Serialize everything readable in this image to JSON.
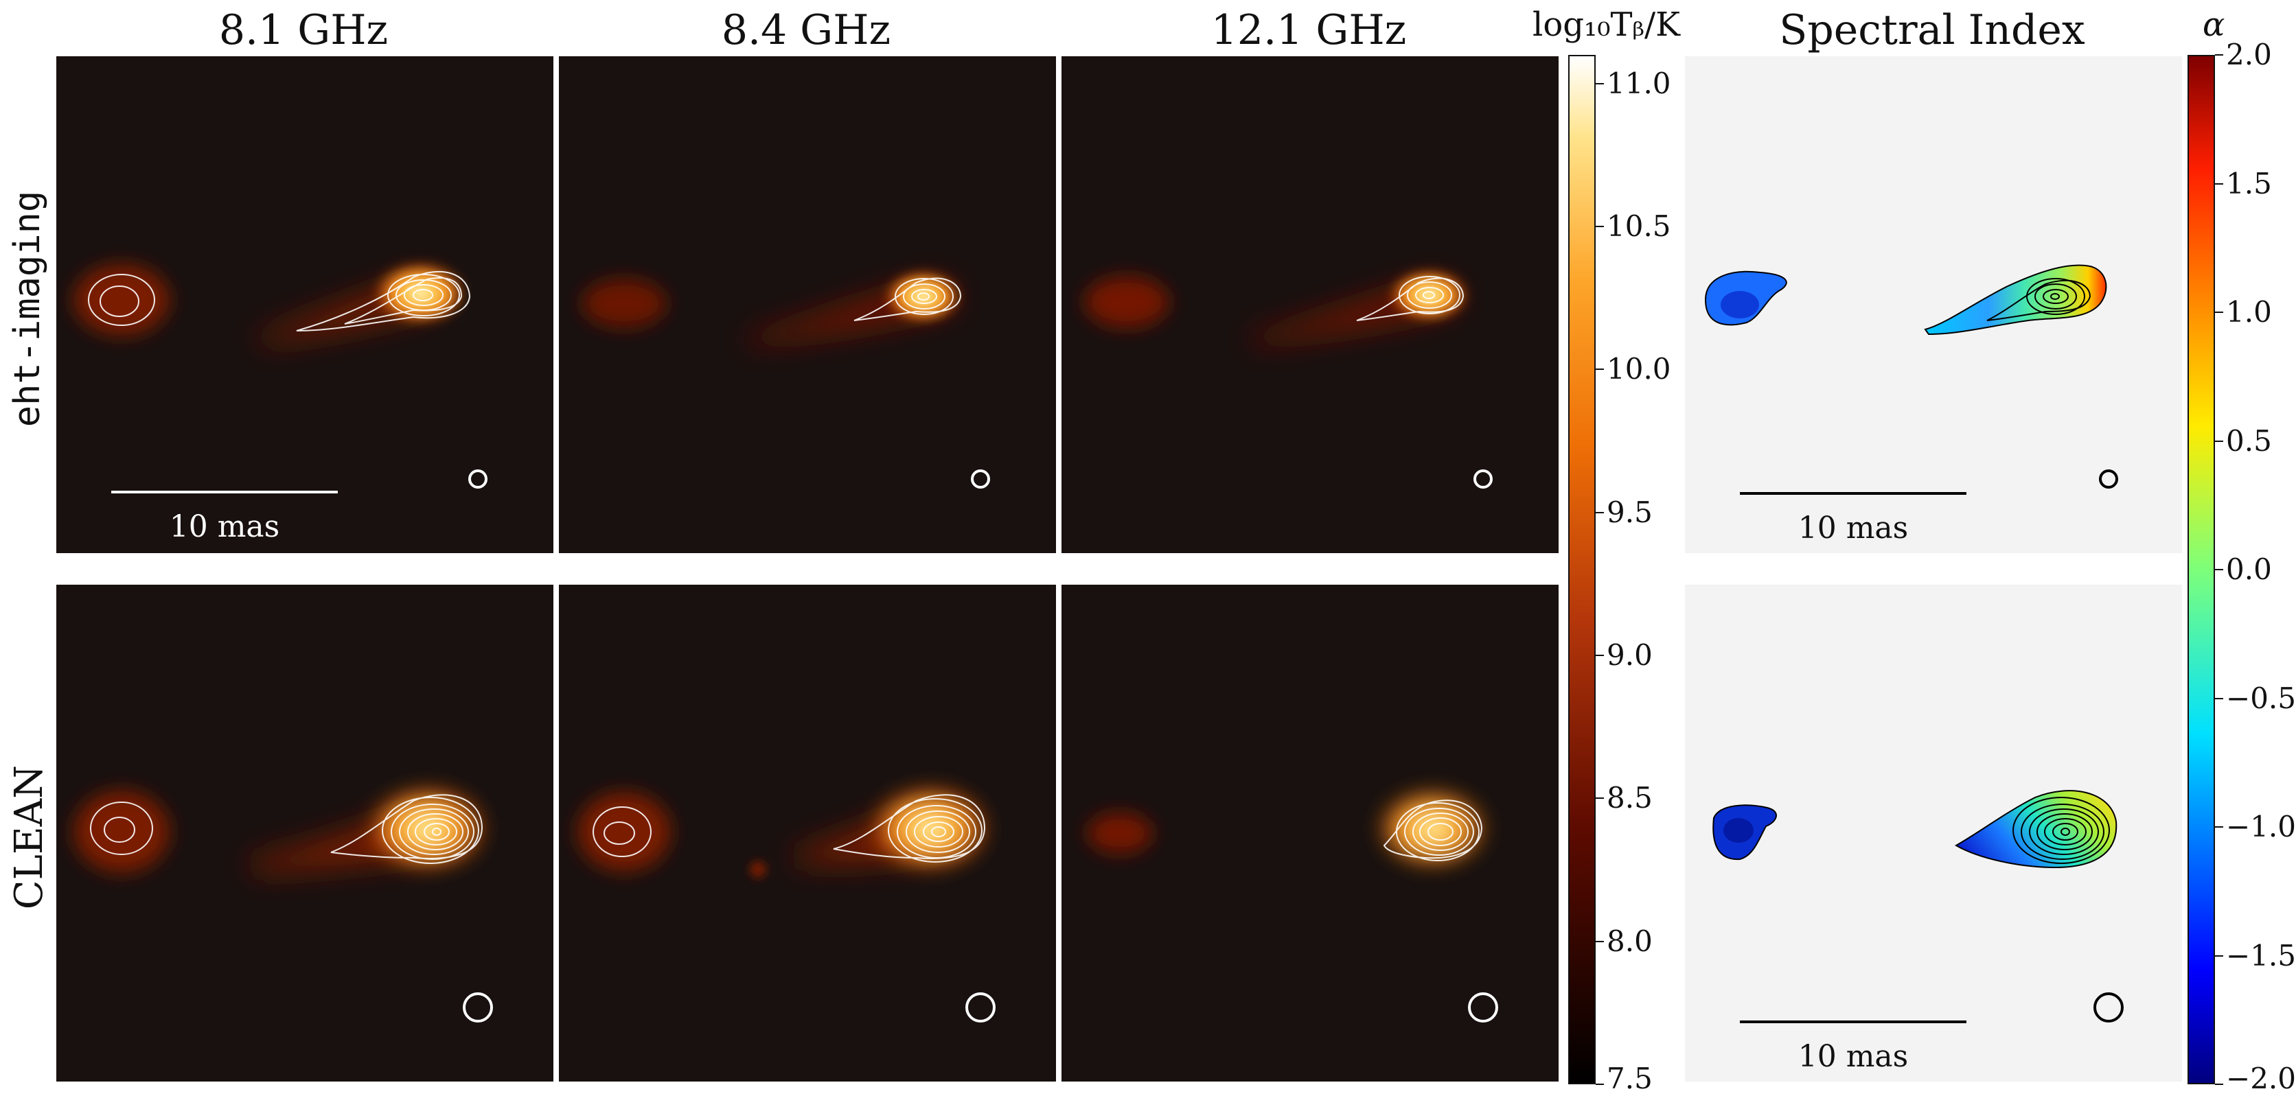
{
  "figure": {
    "column_titles": [
      "8.1 GHz",
      "8.4 GHz",
      "12.1 GHz",
      "Spectral Index"
    ],
    "row_labels": [
      "eht-imaging",
      "CLEAN"
    ],
    "scale_bar_label": "10 mas"
  },
  "colorbars": {
    "brightness": {
      "title": "log₁₀Tᵦ/K",
      "ticks": [
        "11.0",
        "10.5",
        "10.0",
        "9.5",
        "9.0",
        "8.5",
        "8.0",
        "7.5"
      ],
      "range": [
        7.5,
        11.1
      ],
      "colormap": "afmhot"
    },
    "spectral": {
      "title": "α",
      "ticks": [
        "2.0",
        "1.5",
        "1.0",
        "0.5",
        "0.0",
        "−0.5",
        "−1.0",
        "−1.5",
        "−2.0"
      ],
      "range": [
        -2.0,
        2.0
      ],
      "colormap": "jet"
    }
  },
  "colors": {
    "image_background": "#18110f",
    "spectral_background": "#f3f3f3",
    "contour_light": "#ffffff",
    "contour_dark": "#000000"
  },
  "chart_data": {
    "type": "heatmap",
    "panels": [
      {
        "row": "eht-imaging",
        "column": "8.1 GHz",
        "beam": "small",
        "scale_bar": true
      },
      {
        "row": "eht-imaging",
        "column": "8.4 GHz",
        "beam": "small",
        "scale_bar": false
      },
      {
        "row": "eht-imaging",
        "column": "12.1 GHz",
        "beam": "small",
        "scale_bar": false
      },
      {
        "row": "eht-imaging",
        "column": "Spectral Index",
        "beam": "small",
        "scale_bar": true
      },
      {
        "row": "CLEAN",
        "column": "8.1 GHz",
        "beam": "large",
        "scale_bar": false
      },
      {
        "row": "CLEAN",
        "column": "8.4 GHz",
        "beam": "large",
        "scale_bar": false
      },
      {
        "row": "CLEAN",
        "column": "12.1 GHz",
        "beam": "large",
        "scale_bar": false
      },
      {
        "row": "CLEAN",
        "column": "Spectral Index",
        "beam": "large",
        "scale_bar": true
      }
    ],
    "brightness_colorbar": {
      "label": "log10 Tb/K",
      "min": 7.5,
      "max": 11.1,
      "ticks": [
        11.0,
        10.5,
        10.0,
        9.5,
        9.0,
        8.5,
        8.0,
        7.5
      ]
    },
    "spectral_colorbar": {
      "label": "alpha",
      "min": -2.0,
      "max": 2.0,
      "ticks": [
        2.0,
        1.5,
        1.0,
        0.5,
        0.0,
        -0.5,
        -1.0,
        -1.5,
        -2.0
      ]
    }
  }
}
